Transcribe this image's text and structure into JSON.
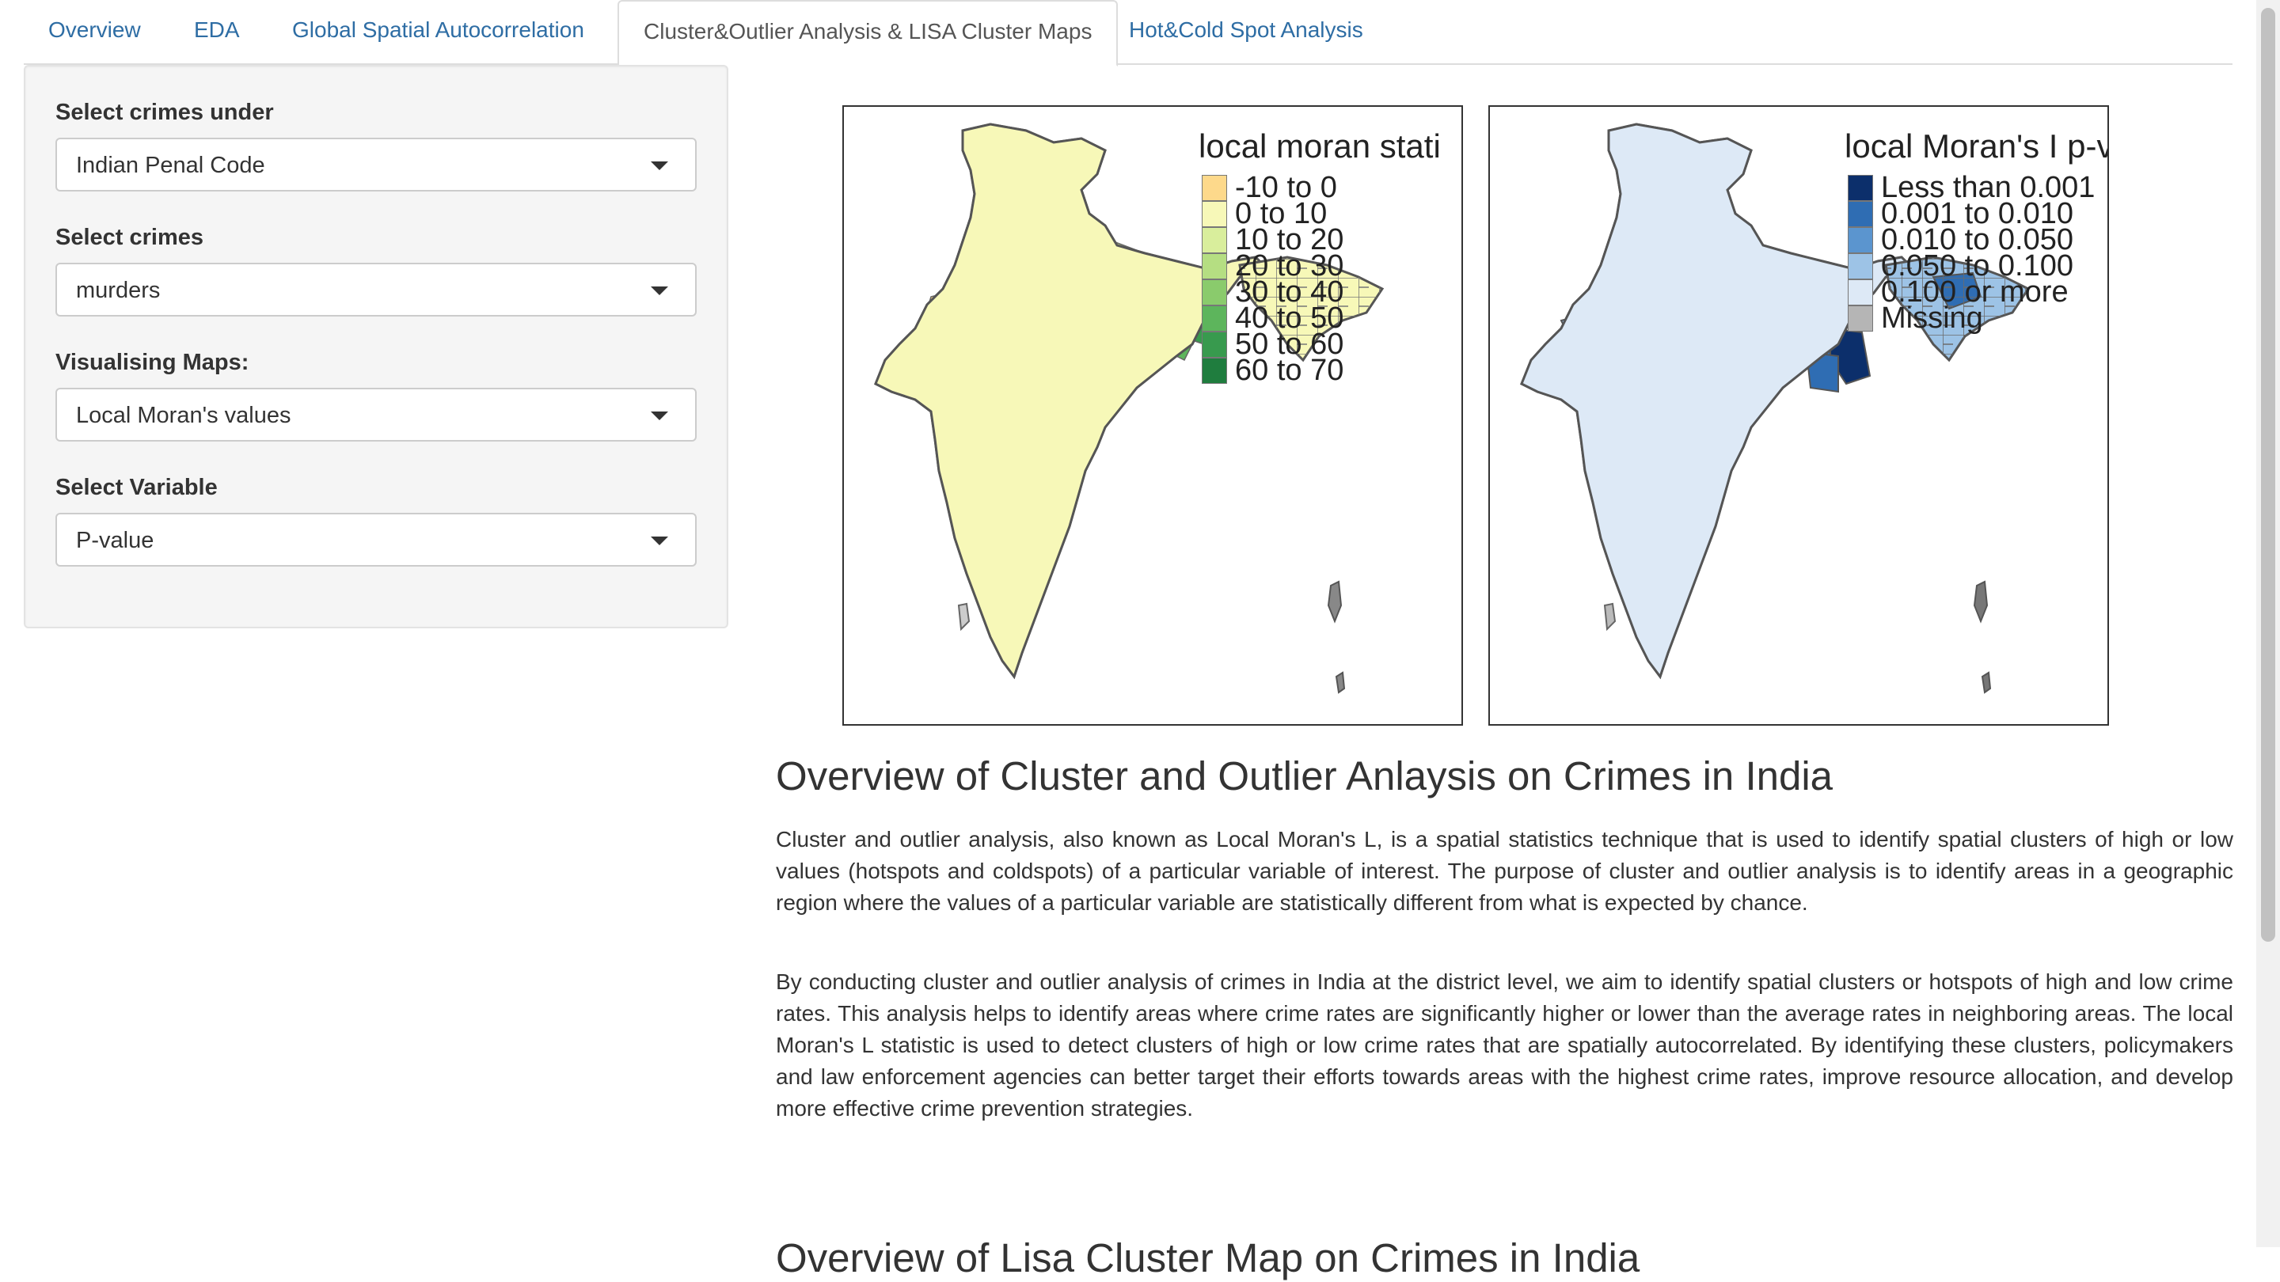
{
  "tabs": [
    {
      "label": "Overview",
      "active": false
    },
    {
      "label": "EDA",
      "active": false
    },
    {
      "label": "Global Spatial Autocorrelation",
      "active": false
    },
    {
      "label": "Cluster&Outlier Analysis & LISA Cluster Maps",
      "active": true
    },
    {
      "label": "Hot&Cold Spot Analysis",
      "active": false
    }
  ],
  "sidebar": {
    "crimes_under_label": "Select crimes under",
    "crimes_under_value": "Indian Penal Code",
    "crimes_label": "Select crimes",
    "crimes_value": "murders",
    "maps_label": "Visualising Maps:",
    "maps_value": "Local Moran's values",
    "variable_label": "Select Variable",
    "variable_value": "P-value"
  },
  "map_left": {
    "legend_title": "local moran stati",
    "legend": [
      {
        "label": "-10 to 0",
        "color": "#fdd98b"
      },
      {
        "label": "0 to 10",
        "color": "#f7f8b8"
      },
      {
        "label": "10 to 20",
        "color": "#d9ee9c"
      },
      {
        "label": "20 to 30",
        "color": "#b5de82"
      },
      {
        "label": "30 to 40",
        "color": "#8acb6c"
      },
      {
        "label": "40 to 50",
        "color": "#5db55c"
      },
      {
        "label": "50 to 60",
        "color": "#389a4e"
      },
      {
        "label": "60 to 70",
        "color": "#1f7d3e"
      }
    ]
  },
  "map_right": {
    "legend_title": "local Moran's I p-va",
    "legend": [
      {
        "label": "Less than 0.001",
        "color": "#0c2f6b"
      },
      {
        "label": "0.001 to 0.010",
        "color": "#2f6db3"
      },
      {
        "label": "0.010 to 0.050",
        "color": "#5b95cf"
      },
      {
        "label": "0.050 to 0.100",
        "color": "#9dc3e6"
      },
      {
        "label": "0.100 or more",
        "color": "#dde9f6"
      },
      {
        "label": "Missing",
        "color": "#b5b5b5"
      }
    ]
  },
  "content": {
    "heading1": "Overview of Cluster and Outlier Anlaysis on Crimes in India",
    "para1": "Cluster and outlier analysis, also known as Local Moran's L, is a spatial statistics technique that is used to identify spatial clusters of high or low values (hotspots and coldspots) of a particular variable of interest. The purpose of cluster and outlier analysis is to identify areas in a geographic region where the values of a particular variable are statistically different from what is expected by chance.",
    "para2": "By conducting cluster and outlier analysis of crimes in India at the district level, we aim to identify spatial clusters or hotspots of high and low crime rates. This analysis helps to identify areas where crime rates are significantly higher or lower than the average rates in neighboring areas. The local Moran's L statistic is used to detect clusters of high or low crime rates that are spatially autocorrelated. By identifying these clusters, policymakers and law enforcement agencies can better target their efforts towards areas with the highest crime rates, improve resource allocation, and develop more effective crime prevention strategies.",
    "heading2": "Overview of Lisa Cluster Map on Crimes in India"
  }
}
